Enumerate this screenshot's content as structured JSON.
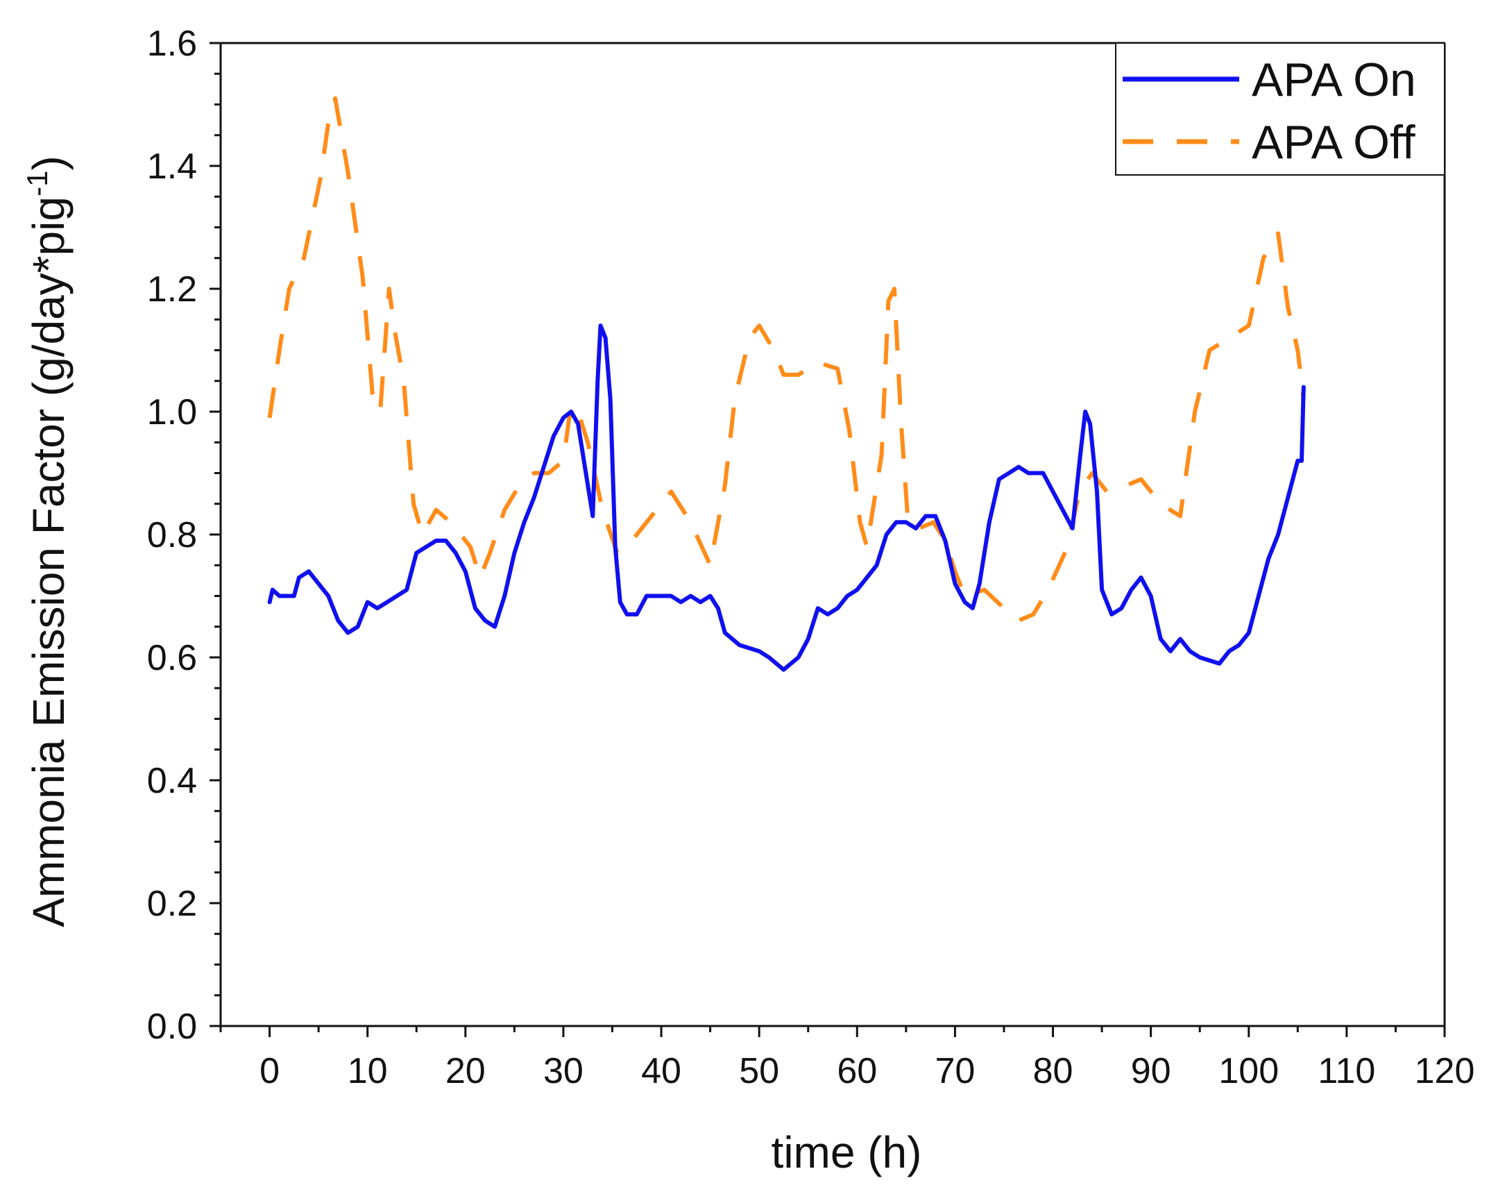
{
  "chart_data": {
    "type": "line",
    "title": "",
    "xlabel": "time (h)",
    "ylabel": {
      "main": "Ammonia Emission Factor (g/day*pig",
      "sup": "-1",
      "close": ")"
    },
    "xlim": [
      -5,
      120
    ],
    "ylim": [
      0,
      1.6
    ],
    "x_ticks": [
      "0",
      "10",
      "20",
      "30",
      "40",
      "50",
      "60",
      "70",
      "80",
      "90",
      "100",
      "110",
      "120"
    ],
    "y_ticks": [
      "0.0",
      "0.2",
      "0.4",
      "0.6",
      "0.8",
      "1.0",
      "1.2",
      "1.4",
      "1.6"
    ],
    "legend": {
      "position": "top-right",
      "entries": [
        "APA On",
        "APA Off"
      ]
    },
    "colors": {
      "apa_on": "#1010ee",
      "apa_off": "#ff8c1a",
      "axis": "#111111"
    },
    "series": [
      {
        "name": "APA On",
        "style": "solid",
        "points": [
          [
            0,
            0.69
          ],
          [
            0.3,
            0.71
          ],
          [
            1,
            0.7
          ],
          [
            2,
            0.7
          ],
          [
            2.5,
            0.7
          ],
          [
            3,
            0.73
          ],
          [
            4,
            0.74
          ],
          [
            5,
            0.72
          ],
          [
            6,
            0.7
          ],
          [
            7,
            0.66
          ],
          [
            8,
            0.64
          ],
          [
            9,
            0.65
          ],
          [
            10,
            0.69
          ],
          [
            11,
            0.68
          ],
          [
            12,
            0.69
          ],
          [
            13,
            0.7
          ],
          [
            14,
            0.71
          ],
          [
            15,
            0.77
          ],
          [
            16,
            0.78
          ],
          [
            17,
            0.79
          ],
          [
            18,
            0.79
          ],
          [
            19,
            0.77
          ],
          [
            20,
            0.74
          ],
          [
            21,
            0.68
          ],
          [
            22,
            0.66
          ],
          [
            23,
            0.65
          ],
          [
            24,
            0.7
          ],
          [
            25,
            0.77
          ],
          [
            26,
            0.82
          ],
          [
            27,
            0.86
          ],
          [
            28,
            0.91
          ],
          [
            29,
            0.96
          ],
          [
            30,
            0.99
          ],
          [
            30.8,
            1.0
          ],
          [
            31.5,
            0.98
          ],
          [
            32.3,
            0.9
          ],
          [
            33,
            0.83
          ],
          [
            33.5,
            1.05
          ],
          [
            33.8,
            1.14
          ],
          [
            34.3,
            1.12
          ],
          [
            34.8,
            1.02
          ],
          [
            35.3,
            0.78
          ],
          [
            35.8,
            0.69
          ],
          [
            36.5,
            0.67
          ],
          [
            37.5,
            0.67
          ],
          [
            38.5,
            0.7
          ],
          [
            40,
            0.7
          ],
          [
            41,
            0.7
          ],
          [
            42,
            0.69
          ],
          [
            43,
            0.7
          ],
          [
            44,
            0.69
          ],
          [
            45,
            0.7
          ],
          [
            45.8,
            0.68
          ],
          [
            46.5,
            0.64
          ],
          [
            48,
            0.62
          ],
          [
            50,
            0.61
          ],
          [
            51,
            0.6
          ],
          [
            52.5,
            0.58
          ],
          [
            54,
            0.6
          ],
          [
            55,
            0.63
          ],
          [
            56,
            0.68
          ],
          [
            57,
            0.67
          ],
          [
            58,
            0.68
          ],
          [
            59,
            0.7
          ],
          [
            60,
            0.71
          ],
          [
            61,
            0.73
          ],
          [
            62,
            0.75
          ],
          [
            63,
            0.8
          ],
          [
            64,
            0.82
          ],
          [
            65,
            0.82
          ],
          [
            66,
            0.81
          ],
          [
            67,
            0.83
          ],
          [
            68,
            0.83
          ],
          [
            69,
            0.79
          ],
          [
            70,
            0.72
          ],
          [
            71,
            0.69
          ],
          [
            71.8,
            0.68
          ],
          [
            72.5,
            0.72
          ],
          [
            73.5,
            0.82
          ],
          [
            74.5,
            0.89
          ],
          [
            75.5,
            0.9
          ],
          [
            76.5,
            0.91
          ],
          [
            77.5,
            0.9
          ],
          [
            79,
            0.9
          ],
          [
            80,
            0.87
          ],
          [
            81,
            0.84
          ],
          [
            82,
            0.81
          ],
          [
            82.8,
            0.93
          ],
          [
            83.3,
            1.0
          ],
          [
            83.8,
            0.98
          ],
          [
            84.5,
            0.87
          ],
          [
            85,
            0.71
          ],
          [
            86,
            0.67
          ],
          [
            87,
            0.68
          ],
          [
            88,
            0.71
          ],
          [
            89,
            0.73
          ],
          [
            90,
            0.7
          ],
          [
            91,
            0.63
          ],
          [
            92,
            0.61
          ],
          [
            93,
            0.63
          ],
          [
            94,
            0.61
          ],
          [
            95,
            0.6
          ],
          [
            97,
            0.59
          ],
          [
            98,
            0.61
          ],
          [
            99,
            0.62
          ],
          [
            100,
            0.64
          ],
          [
            101,
            0.7
          ],
          [
            102,
            0.76
          ],
          [
            103,
            0.8
          ],
          [
            104,
            0.86
          ],
          [
            105,
            0.92
          ],
          [
            105.4,
            0.92
          ],
          [
            105.6,
            1.04
          ]
        ]
      },
      {
        "name": "APA Off",
        "style": "dashed",
        "points": [
          [
            0,
            0.99
          ],
          [
            1,
            1.1
          ],
          [
            2,
            1.2
          ],
          [
            3.5,
            1.25
          ],
          [
            5.2,
            1.38
          ],
          [
            6,
            1.47
          ],
          [
            6.7,
            1.51
          ],
          [
            8,
            1.39
          ],
          [
            9.5,
            1.22
          ],
          [
            10.5,
            1.03
          ],
          [
            11.3,
            1.0
          ],
          [
            12.2,
            1.2
          ],
          [
            12.8,
            1.13
          ],
          [
            13.7,
            1.05
          ],
          [
            14.7,
            0.85
          ],
          [
            15.6,
            0.8
          ],
          [
            17,
            0.84
          ],
          [
            18.5,
            0.82
          ],
          [
            20.5,
            0.78
          ],
          [
            21.5,
            0.73
          ],
          [
            22.5,
            0.77
          ],
          [
            24,
            0.84
          ],
          [
            25.5,
            0.88
          ],
          [
            27,
            0.9
          ],
          [
            28.5,
            0.9
          ],
          [
            30,
            0.92
          ],
          [
            30.6,
            0.99
          ],
          [
            31.3,
            1.01
          ],
          [
            32.5,
            0.95
          ],
          [
            34,
            0.84
          ],
          [
            35.5,
            0.77
          ],
          [
            37,
            0.79
          ],
          [
            39,
            0.83
          ],
          [
            41,
            0.87
          ],
          [
            43,
            0.82
          ],
          [
            45,
            0.75
          ],
          [
            46.5,
            0.88
          ],
          [
            47.5,
            1.02
          ],
          [
            49,
            1.12
          ],
          [
            50,
            1.14
          ],
          [
            51.5,
            1.1
          ],
          [
            52.5,
            1.06
          ],
          [
            54,
            1.06
          ],
          [
            56,
            1.08
          ],
          [
            58,
            1.07
          ],
          [
            59.2,
            0.97
          ],
          [
            60.3,
            0.82
          ],
          [
            61,
            0.78
          ],
          [
            62.5,
            0.93
          ],
          [
            63.2,
            1.18
          ],
          [
            63.8,
            1.2
          ],
          [
            64.5,
            0.98
          ],
          [
            65.2,
            0.82
          ],
          [
            66.3,
            0.81
          ],
          [
            67.8,
            0.82
          ],
          [
            69,
            0.79
          ],
          [
            70,
            0.74
          ],
          [
            71,
            0.7
          ],
          [
            73,
            0.71
          ],
          [
            75,
            0.68
          ],
          [
            76.5,
            0.66
          ],
          [
            78,
            0.67
          ],
          [
            79.5,
            0.71
          ],
          [
            81.5,
            0.78
          ],
          [
            82.7,
            0.87
          ],
          [
            84,
            0.9
          ],
          [
            85.5,
            0.87
          ],
          [
            87.5,
            0.88
          ],
          [
            89,
            0.89
          ],
          [
            91,
            0.85
          ],
          [
            93,
            0.83
          ],
          [
            94.5,
            1.0
          ],
          [
            96,
            1.1
          ],
          [
            98,
            1.12
          ],
          [
            100,
            1.14
          ],
          [
            101.5,
            1.25
          ],
          [
            103,
            1.29
          ],
          [
            104,
            1.17
          ],
          [
            105,
            1.1
          ],
          [
            105.6,
            1.02
          ]
        ]
      }
    ]
  }
}
